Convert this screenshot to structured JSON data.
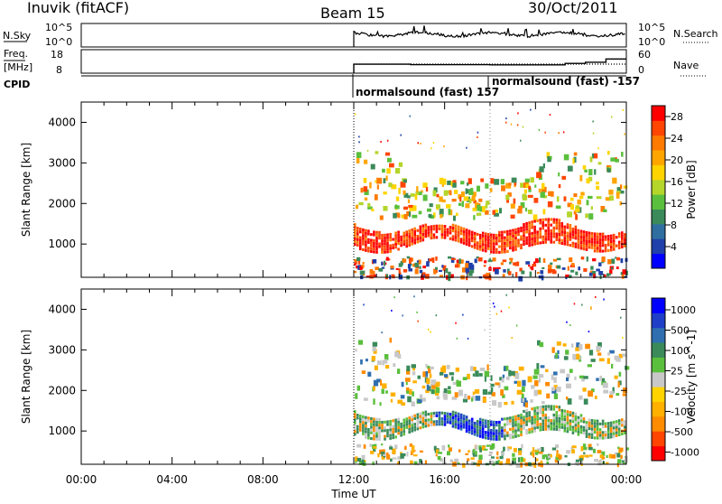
{
  "header": {
    "station": "Inuvik (fitACF)",
    "beam": "Beam 15",
    "date": "30/Oct/2011"
  },
  "noise_panel": {
    "left_label": "N.Sky",
    "left_ticks": [
      "10^5",
      "10^0"
    ],
    "right_label": "N.Search",
    "right_ticks": [
      "10^5",
      "10^0"
    ]
  },
  "freq_panel": {
    "left_label_line1": "Freq.",
    "left_label_line2": "[MHz]",
    "left_ticks": [
      "18",
      "8"
    ],
    "right_label": "Nave",
    "right_ticks": [
      "60",
      "0"
    ]
  },
  "cpid": {
    "label": "CPID",
    "modes": [
      "normalsound (fast) 157",
      "normalsound (fast) -157"
    ]
  },
  "colors": {
    "power_scale": [
      "#0000ff",
      "#1f3faa",
      "#2f6fa0",
      "#3a8a5a",
      "#5abf3c",
      "#b4d52a",
      "#ffd400",
      "#ffa500",
      "#ff7a00",
      "#ff4500",
      "#ff0000"
    ],
    "velocity_scale": [
      "#ff0000",
      "#ff4500",
      "#ff8c00",
      "#ffb000",
      "#ffd400",
      "#c8c8c8",
      "#5abf3c",
      "#3a8a5a",
      "#2f6fb0",
      "#1f3fc8",
      "#0000ff"
    ]
  },
  "chart_data": [
    {
      "type": "heatmap",
      "name": "power",
      "ylabel": "Slant Range [km]",
      "yticks": [
        1000,
        2000,
        3000,
        4000
      ],
      "ylim": [
        180,
        4500
      ],
      "xlim_hours": [
        0,
        24
      ],
      "colorbar": {
        "label": "Power [dB]",
        "ticks": [
          "4",
          "8",
          "12",
          "16",
          "20",
          "24",
          "28"
        ]
      }
    },
    {
      "type": "heatmap",
      "name": "velocity",
      "ylabel": "Slant Range [km]",
      "yticks": [
        1000,
        2000,
        3000,
        4000
      ],
      "ylim": [
        180,
        4500
      ],
      "xlim_hours": [
        0,
        24
      ],
      "colorbar": {
        "label": "Velocity [m s^-1]",
        "ticks": [
          "1000",
          "500",
          "100",
          "25",
          "-25",
          "-100",
          "-500",
          "-1000"
        ]
      }
    }
  ],
  "xaxis": {
    "ticks": [
      "00:00",
      "04:00",
      "08:00",
      "12:00",
      "16:00",
      "20:00",
      "00:00"
    ],
    "label": "Time UT"
  }
}
